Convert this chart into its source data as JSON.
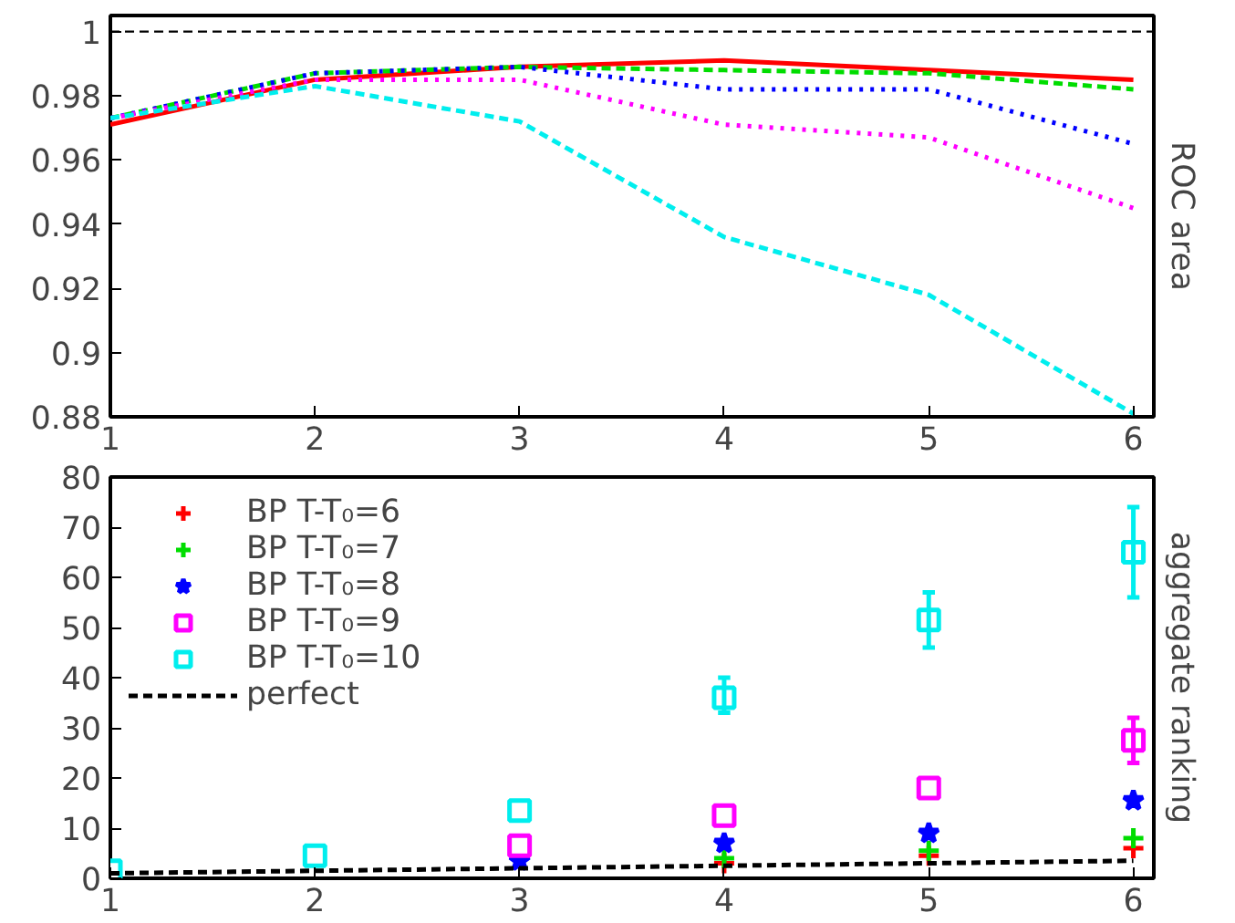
{
  "chart_data": [
    {
      "type": "line",
      "x": [
        1,
        2,
        3,
        4,
        5,
        6
      ],
      "ylabel": "ROC area",
      "xlim": [
        1,
        6.1
      ],
      "ylim": [
        0.88,
        1.005
      ],
      "xticks": [
        1,
        2,
        3,
        4,
        5,
        6
      ],
      "yticks": [
        0.88,
        0.9,
        0.92,
        0.94,
        0.96,
        0.98,
        1
      ],
      "grid": false,
      "legend": false,
      "marker": "none",
      "ref_lines": [
        {
          "axis": "y",
          "value": 1,
          "color": "#000000",
          "line_style": "dashed"
        }
      ],
      "series": [
        {
          "color": "#ff0000",
          "line_style": "solid",
          "values": [
            0.971,
            0.985,
            0.989,
            0.991,
            0.988,
            0.985
          ]
        },
        {
          "color": "#00dd00",
          "line_style": "dashed",
          "values": [
            0.973,
            0.987,
            0.989,
            0.988,
            0.987,
            0.982
          ]
        },
        {
          "color": "#0000ff",
          "line_style": "dotted",
          "values": [
            0.973,
            0.987,
            0.989,
            0.982,
            0.982,
            0.965
          ]
        },
        {
          "color": "#ff00ff",
          "line_style": "dotted",
          "values": [
            0.973,
            0.985,
            0.985,
            0.971,
            0.967,
            0.945
          ]
        },
        {
          "color": "#00eeee",
          "line_style": "dashed",
          "values": [
            0.973,
            0.983,
            0.972,
            0.936,
            0.918,
            0.881
          ]
        }
      ]
    },
    {
      "type": "scatter",
      "x": [
        1,
        2,
        3,
        4,
        5,
        6
      ],
      "ylabel": "aggregate ranking",
      "xlim": [
        1,
        6.1
      ],
      "ylim": [
        0,
        80
      ],
      "xticks": [
        1,
        2,
        3,
        4,
        5,
        6
      ],
      "yticks": [
        0,
        10,
        20,
        30,
        40,
        50,
        60,
        70,
        80
      ],
      "grid": false,
      "legend": "top left",
      "series": [
        {
          "name": "BP T-T₀=6",
          "color": "#ff0000",
          "marker": "cross",
          "values": [
            null,
            null,
            null,
            3,
            4.5,
            6
          ]
        },
        {
          "name": "BP T-T₀=7",
          "color": "#00dd00",
          "marker": "cross",
          "values": [
            null,
            null,
            null,
            4,
            5.5,
            8
          ]
        },
        {
          "name": "BP T-T₀=8",
          "color": "#0000ff",
          "marker": "star",
          "values": [
            null,
            null,
            3.5,
            7,
            9,
            15.5
          ]
        },
        {
          "name": "BP T-T₀=9",
          "color": "#ff00ff",
          "marker": "square",
          "values": [
            null,
            null,
            6.5,
            12.5,
            18,
            27.5
          ],
          "errors": [
            null,
            null,
            null,
            null,
            null,
            [
              23,
              32
            ]
          ]
        },
        {
          "name": "BP T-T₀=10",
          "color": "#00eeee",
          "marker": "square",
          "values": [
            1.5,
            4.5,
            13.5,
            36,
            51.5,
            65
          ],
          "errors": [
            null,
            null,
            null,
            [
              33,
              40
            ],
            [
              46,
              57
            ],
            [
              56,
              74
            ]
          ]
        },
        {
          "name": "perfect",
          "type": "line",
          "color": "#000000",
          "line_style": "dashed",
          "marker": "none",
          "x": [
            1,
            6
          ],
          "values": [
            1,
            3.5
          ]
        }
      ]
    }
  ]
}
